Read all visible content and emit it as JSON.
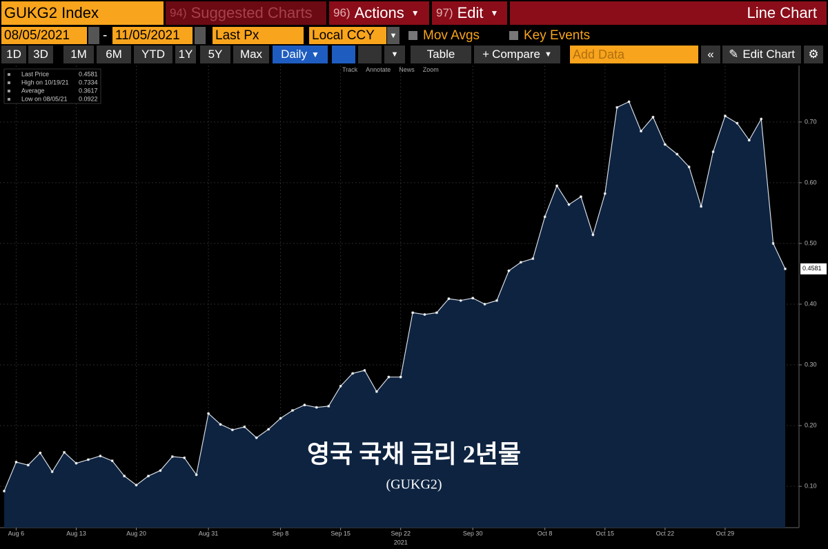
{
  "ui": {
    "security": "GUKG2 Index",
    "suggested": {
      "key": "94)",
      "label": "Suggested Charts"
    },
    "actions": {
      "key": "96)",
      "label": "Actions"
    },
    "edit": {
      "key": "97)",
      "label": "Edit"
    },
    "chart_type": "Line Chart",
    "start_date": "08/05/2021",
    "date_separator": "-",
    "end_date": "11/05/2021",
    "field": "Last Px",
    "currency": "Local CCY",
    "mov_avgs": "Mov Avgs",
    "key_events": "Key Events",
    "periods": [
      "1D",
      "3D",
      "1M",
      "6M",
      "YTD",
      "1Y",
      "5Y",
      "Max"
    ],
    "frequency": "Daily",
    "table": "Table",
    "compare": "Compare",
    "add_data": "Add Data",
    "edit_chart": "Edit Chart",
    "tools": [
      "Track",
      "Annotate",
      "News",
      "Zoom"
    ]
  },
  "chart_data": {
    "type": "line",
    "annotation": "영국 국채 금리 2년물",
    "annotation_sub": "(GUKG2)",
    "x_year": "2021",
    "legend": [
      {
        "label": "Last Price",
        "value": "0.4581"
      },
      {
        "label": "High on 10/19/21",
        "value": "0.7334"
      },
      {
        "label": "Average",
        "value": "0.3617"
      },
      {
        "label": "Low on 08/05/21",
        "value": "0.0922"
      }
    ],
    "categories": [
      null,
      "Aug 6",
      null,
      null,
      null,
      null,
      "Aug 13",
      null,
      null,
      null,
      null,
      "Aug 20",
      null,
      null,
      null,
      null,
      null,
      "Aug 31",
      null,
      null,
      null,
      null,
      null,
      "Sep 8",
      null,
      null,
      null,
      null,
      "Sep 15",
      null,
      null,
      null,
      null,
      "Sep 22",
      null,
      null,
      null,
      null,
      null,
      "Sep 30",
      null,
      null,
      null,
      null,
      null,
      "Oct 8",
      null,
      null,
      null,
      null,
      "Oct 15",
      null,
      null,
      null,
      null,
      "Oct 22",
      null,
      null,
      null,
      null,
      "Oct 29",
      null,
      null,
      null,
      null,
      null
    ],
    "series": [
      {
        "name": "Last Price",
        "color": "#d8dce4",
        "fill": "#0d2340",
        "values": [
          0.0922,
          0.14,
          0.135,
          0.155,
          0.124,
          0.156,
          0.138,
          0.144,
          0.15,
          0.142,
          0.117,
          0.102,
          0.117,
          0.126,
          0.149,
          0.147,
          0.119,
          0.22,
          0.202,
          0.193,
          0.198,
          0.18,
          0.194,
          0.212,
          0.225,
          0.234,
          0.23,
          0.232,
          0.265,
          0.286,
          0.291,
          0.256,
          0.28,
          0.28,
          0.386,
          0.383,
          0.386,
          0.409,
          0.406,
          0.41,
          0.4,
          0.406,
          0.455,
          0.469,
          0.475,
          0.544,
          0.595,
          0.564,
          0.577,
          0.514,
          0.582,
          0.724,
          0.7334,
          0.685,
          0.708,
          0.663,
          0.647,
          0.626,
          0.561,
          0.651,
          0.71,
          0.698,
          0.67,
          0.705,
          0.5,
          0.4581
        ]
      }
    ],
    "ylim": [
      0.032,
      0.793
    ],
    "yticks": [
      {
        "value": 0.1,
        "label": "0.10"
      },
      {
        "value": 0.2,
        "label": "0.20"
      },
      {
        "value": 0.3,
        "label": "0.30"
      },
      {
        "value": 0.4,
        "label": "0.40"
      },
      {
        "value": 0.5,
        "label": "0.50"
      },
      {
        "value": 0.6,
        "label": "0.60"
      },
      {
        "value": 0.7,
        "label": "0.70"
      }
    ],
    "grid": true
  }
}
